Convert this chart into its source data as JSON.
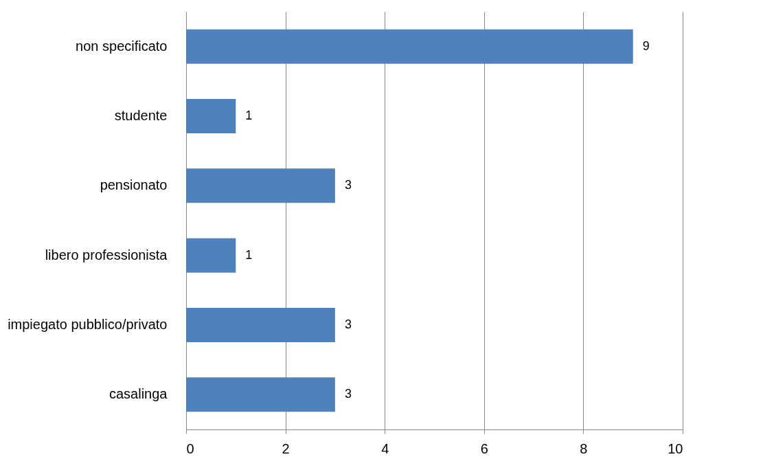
{
  "chart_data": {
    "type": "bar",
    "orientation": "horizontal",
    "categories": [
      "non specificato",
      "studente",
      "pensionato",
      "libero professionista",
      "impiegato pubblico/privato",
      "casalinga"
    ],
    "values": [
      9,
      1,
      3,
      1,
      3,
      3
    ],
    "color": "#4f81bd",
    "xlim": [
      0,
      10
    ],
    "xticks": [
      0,
      2,
      4,
      6,
      8,
      10
    ],
    "grid": "x",
    "data_labels": true
  }
}
